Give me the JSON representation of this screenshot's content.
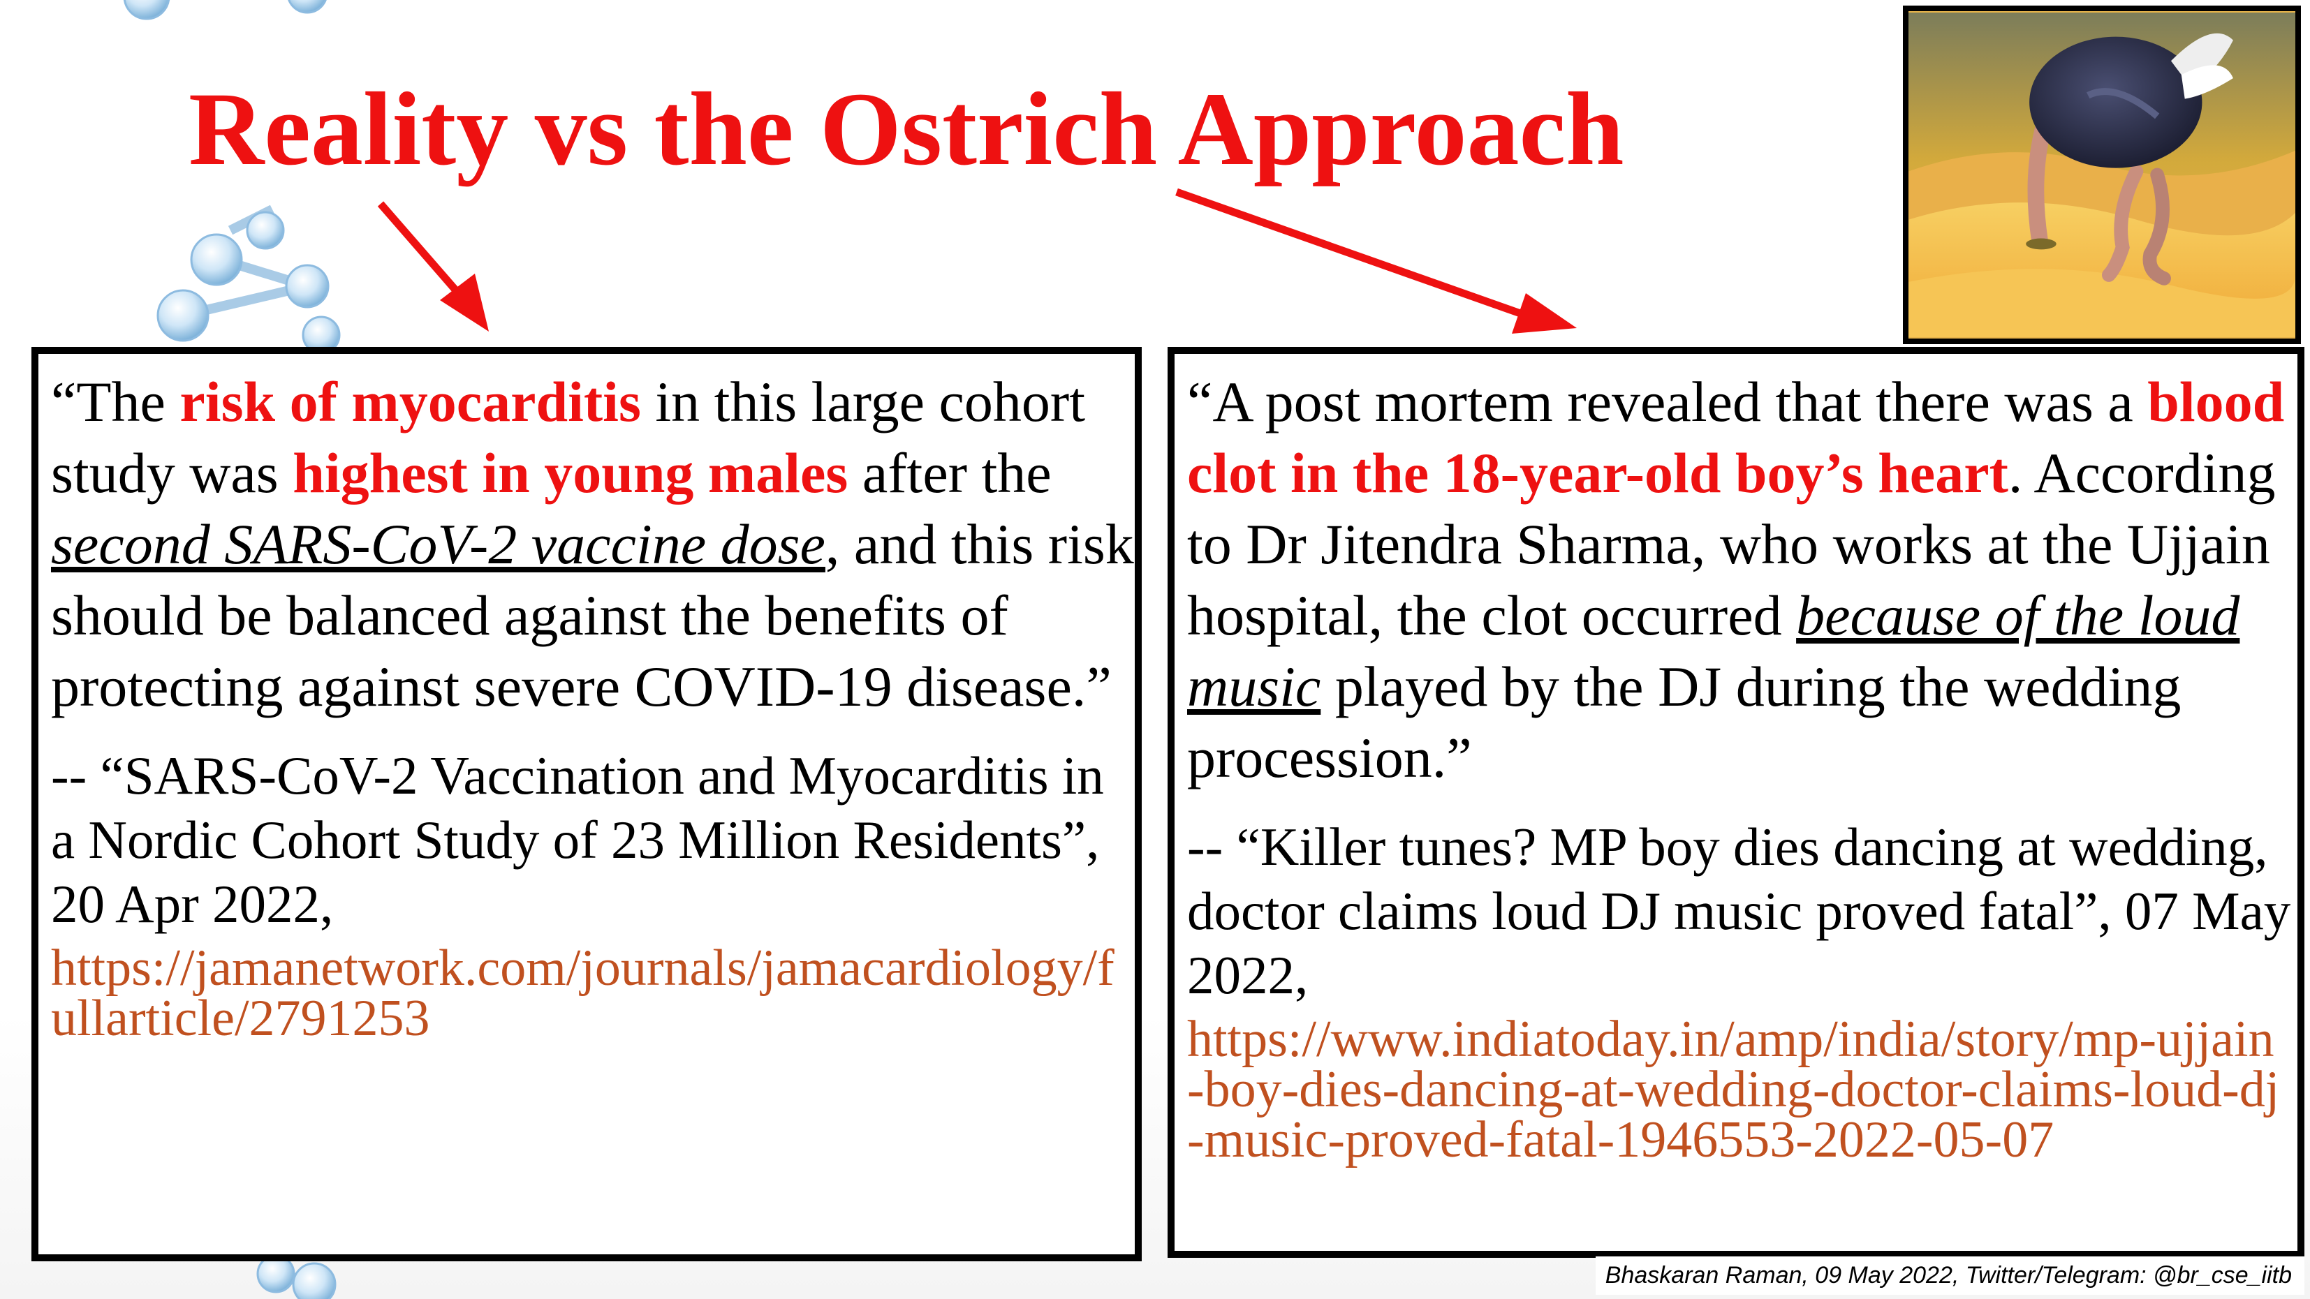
{
  "slide": {
    "title": "Reality vs the Ostrich Approach",
    "illustration_icon": "ostrich-head-in-sand-icon",
    "accent_color": "#ee1111",
    "link_color": "#c0501f"
  },
  "left_panel": {
    "quote": {
      "t1": "“The ",
      "h1": "risk of myocarditis",
      "t2": " in this large cohort study was ",
      "h2": "highest in young males",
      "t3": " after the ",
      "e1": "second SARS-CoV-2 vaccine dose",
      "t4": ", and this risk should be balanced against the benefits of protecting against severe COVID-19 disease.”"
    },
    "citation": "-- “SARS-CoV-2 Vaccination and Myocarditis in a Nordic Cohort Study of 23 Million Residents”, 20 Apr 2022,",
    "url": "https://jamanetwork.com/journals/jamacardiology/fullarticle/2791253"
  },
  "right_panel": {
    "quote": {
      "t1": "“A post mortem revealed that there was a ",
      "h1": "blood clot in the 18-year-old boy’s heart",
      "t2": ". According to Dr Jitendra Sharma, who works at the Ujjain hospital, the clot occurred ",
      "e1": "because of the loud music",
      "t3": " played by the DJ during the wedding procession.”"
    },
    "citation": "-- “Killer tunes? MP boy dies dancing at wedding, doctor claims loud DJ music proved fatal”, 07 May 2022,",
    "url": "https://www.indiatoday.in/amp/india/story/mp-ujjain-boy-dies-dancing-at-wedding-doctor-claims-loud-dj-music-proved-fatal-1946553-2022-05-07"
  },
  "footer": {
    "credit": "Bhaskaran Raman, 09 May 2022, Twitter/Telegram: @br_cse_iitb"
  }
}
